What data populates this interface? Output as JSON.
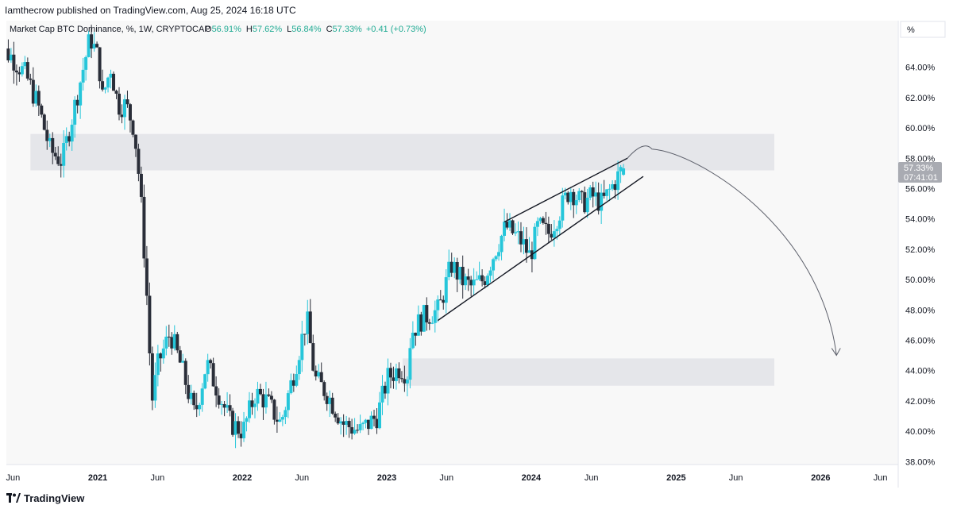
{
  "header": {
    "publisher_line": "Iamthecrow published on TradingView.com, Aug 25, 2024 16:18 UTC"
  },
  "legend": {
    "symbol": "Market Cap BTC Dominance, %, 1W, CRYPTOCAP",
    "o_label": "O",
    "o_value": "56.91%",
    "h_label": "H",
    "h_value": "57.62%",
    "l_label": "L",
    "l_value": "56.84%",
    "c_label": "C",
    "c_value": "57.33%",
    "change": "+0.41 (+0.73%)"
  },
  "scale_button": "%",
  "price_label": {
    "value": "57.33%",
    "countdown": "07:41:01"
  },
  "footer": {
    "brand": "TradingView"
  },
  "colors": {
    "up": "#26c6da",
    "down": "#2a2e39",
    "zone": "#e5e6ea",
    "plot_bg": "#f8f8f8",
    "legend_value": "#22ab94",
    "price_label_bg": "#a9abb2"
  },
  "chart_data": {
    "type": "candlestick",
    "title": "Market Cap BTC Dominance, %, 1W, CRYPTOCAP",
    "ylim": [
      36.5,
      66.5
    ],
    "y_ticks": [
      {
        "value": 38,
        "label": "38.00%"
      },
      {
        "value": 40,
        "label": "40.00%"
      },
      {
        "value": 42,
        "label": "42.00%"
      },
      {
        "value": 44,
        "label": "44.00%"
      },
      {
        "value": 46,
        "label": "46.00%"
      },
      {
        "value": 48,
        "label": "48.00%"
      },
      {
        "value": 50,
        "label": "50.00%"
      },
      {
        "value": 52,
        "label": "52.00%"
      },
      {
        "value": 54,
        "label": "54.00%"
      },
      {
        "value": 56,
        "label": "56.00%"
      },
      {
        "value": 58,
        "label": "58.00%"
      },
      {
        "value": 60,
        "label": "60.00%"
      },
      {
        "value": 62,
        "label": "62.00%"
      },
      {
        "value": 64,
        "label": "64.00%"
      }
    ],
    "x_ticks": [
      {
        "date": "2020-06-01",
        "label": "Jun",
        "bold": false
      },
      {
        "date": "2021-01-01",
        "label": "2021",
        "bold": true
      },
      {
        "date": "2021-06-01",
        "label": "Jun",
        "bold": false
      },
      {
        "date": "2022-01-01",
        "label": "2022",
        "bold": true
      },
      {
        "date": "2022-06-01",
        "label": "Jun",
        "bold": false
      },
      {
        "date": "2023-01-01",
        "label": "2023",
        "bold": true
      },
      {
        "date": "2023-06-01",
        "label": "Jun",
        "bold": false
      },
      {
        "date": "2024-01-01",
        "label": "2024",
        "bold": true
      },
      {
        "date": "2024-06-01",
        "label": "Jun",
        "bold": false
      },
      {
        "date": "2025-01-01",
        "label": "2025",
        "bold": true
      },
      {
        "date": "2025-06-01",
        "label": "Jun",
        "bold": false
      },
      {
        "date": "2026-01-01",
        "label": "2026",
        "bold": true
      },
      {
        "date": "2026-06-01",
        "label": "Jun",
        "bold": false
      }
    ],
    "anchors": [
      [
        "2020-04-15",
        65.5
      ],
      [
        "2020-06-01",
        64.8
      ],
      [
        "2020-07-10",
        63.5
      ],
      [
        "2020-08-10",
        61.5
      ],
      [
        "2020-09-10",
        58.5
      ],
      [
        "2020-10-10",
        57.8
      ],
      [
        "2020-11-20",
        62.5
      ],
      [
        "2020-12-20",
        66.0
      ],
      [
        "2021-01-10",
        64.5
      ],
      [
        "2021-01-20",
        62.0
      ],
      [
        "2021-02-10",
        64.0
      ],
      [
        "2021-02-28",
        61.5
      ],
      [
        "2021-03-20",
        61.5
      ],
      [
        "2021-04-10",
        60.0
      ],
      [
        "2021-04-25",
        56.0
      ],
      [
        "2021-05-10",
        50.0
      ],
      [
        "2021-05-25",
        42.0
      ],
      [
        "2021-06-10",
        44.5
      ],
      [
        "2021-07-10",
        46.5
      ],
      [
        "2021-08-10",
        44.0
      ],
      [
        "2021-09-10",
        41.0
      ],
      [
        "2021-10-10",
        44.5
      ],
      [
        "2021-11-10",
        42.5
      ],
      [
        "2021-12-10",
        40.5
      ],
      [
        "2022-01-10",
        40.0
      ],
      [
        "2022-02-10",
        42.5
      ],
      [
        "2022-03-10",
        42.0
      ],
      [
        "2022-04-15",
        40.5
      ],
      [
        "2022-05-20",
        44.0
      ],
      [
        "2022-06-20",
        47.5
      ],
      [
        "2022-07-10",
        43.5
      ],
      [
        "2022-08-10",
        42.5
      ],
      [
        "2022-09-20",
        40.5
      ],
      [
        "2022-11-01",
        40.0
      ],
      [
        "2022-12-15",
        41.0
      ],
      [
        "2023-01-10",
        43.5
      ],
      [
        "2023-02-10",
        44.2
      ],
      [
        "2023-03-01",
        43.8
      ],
      [
        "2023-03-10",
        46.5
      ],
      [
        "2023-04-10",
        47.5
      ],
      [
        "2023-05-20",
        48.0
      ],
      [
        "2023-06-20",
        51.0
      ],
      [
        "2023-07-15",
        50.0
      ],
      [
        "2023-08-10",
        49.5
      ],
      [
        "2023-09-10",
        50.0
      ],
      [
        "2023-10-10",
        52.0
      ],
      [
        "2023-11-05",
        53.5
      ],
      [
        "2023-11-25",
        53.0
      ],
      [
        "2023-12-15",
        52.5
      ],
      [
        "2024-01-05",
        51.5
      ],
      [
        "2024-01-25",
        53.5
      ],
      [
        "2024-02-20",
        53.0
      ],
      [
        "2024-03-20",
        54.5
      ],
      [
        "2024-04-15",
        56.0
      ],
      [
        "2024-05-15",
        55.0
      ],
      [
        "2024-06-10",
        55.5
      ],
      [
        "2024-07-05",
        55.0
      ],
      [
        "2024-08-25",
        57.3
      ]
    ],
    "zones": [
      {
        "from": "2020-07-15",
        "to": "2026-04-10",
        "y_low": 57.2,
        "y_high": 59.6
      },
      {
        "from": "2023-02-10",
        "to": "2026-04-10",
        "y_low": 43.0,
        "y_high": 44.8
      }
    ],
    "trendlines": [
      {
        "x1": "2023-10-25",
        "y1": 53.8,
        "x2": "2024-08-31",
        "y2": 58.0
      },
      {
        "x1": "2023-05-10",
        "y1": 47.3,
        "x2": "2024-10-10",
        "y2": 56.8
      }
    ],
    "projection_arrow": {
      "start": [
        "2024-08-31",
        58.0
      ],
      "peak": [
        "2024-11-01",
        58.6
      ],
      "end": [
        "2026-02-10",
        45.0
      ]
    },
    "last": {
      "date": "2024-08-25",
      "open": 56.91,
      "high": 57.62,
      "low": 56.84,
      "close": 57.33
    }
  }
}
